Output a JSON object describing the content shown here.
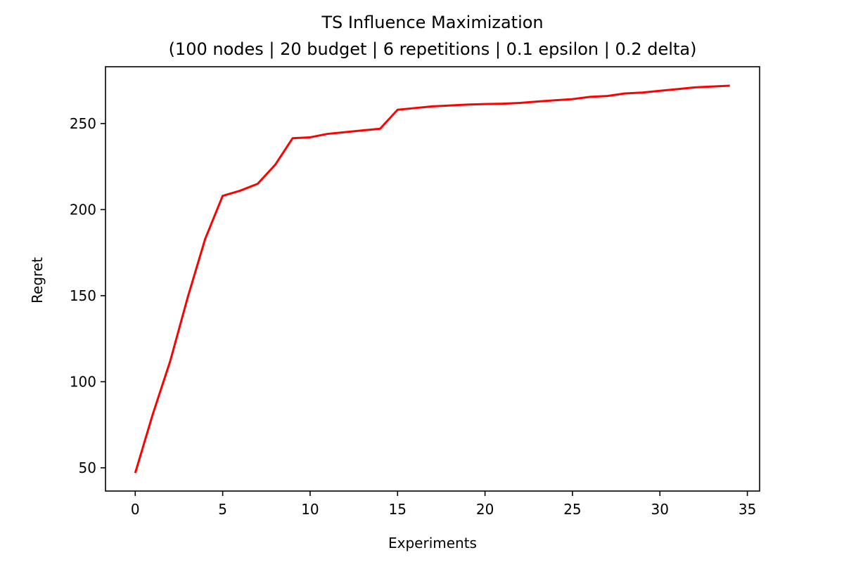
{
  "chart_data": {
    "type": "line",
    "title": "TS Influence Maximization",
    "subtitle": "(100 nodes | 20 budget | 6 repetitions | 0.1 epsilon | 0.2 delta)",
    "xlabel": "Experiments",
    "ylabel": "Regret",
    "xlim": [
      -1.7,
      35.7
    ],
    "ylim": [
      36.5,
      283
    ],
    "xticks": [
      0,
      5,
      10,
      15,
      20,
      25,
      30,
      35
    ],
    "yticks": [
      50,
      100,
      150,
      200,
      250
    ],
    "grid": false,
    "legend": "none",
    "series": [
      {
        "color": "#ff0000",
        "x": [
          0,
          1,
          2,
          3,
          4,
          5,
          6,
          7,
          8,
          9,
          10,
          11,
          12,
          13,
          14,
          15,
          16,
          17,
          18,
          19,
          20,
          21,
          22,
          23,
          24,
          25,
          26,
          27,
          28,
          29,
          30,
          31,
          32,
          33,
          34
        ],
        "y": [
          47,
          81,
          112,
          149,
          183,
          208,
          211,
          215,
          226,
          241.5,
          242,
          244,
          245,
          246,
          247,
          258,
          259,
          260,
          260.5,
          261,
          261.3,
          261.5,
          262,
          262.8,
          263.5,
          264.2,
          265.5,
          266,
          267.5,
          268,
          269,
          270,
          271,
          271.5,
          272
        ]
      }
    ]
  }
}
